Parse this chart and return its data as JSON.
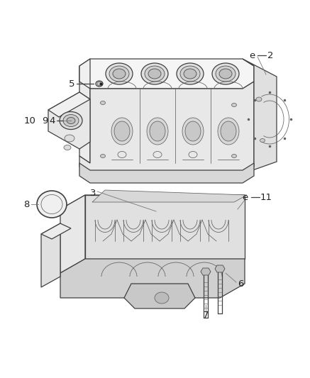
{
  "bg_color": "#ffffff",
  "line_color": "#404040",
  "label_color": "#222222",
  "thin_color": "#606060",
  "lw_main": 0.9,
  "lw_thin": 0.55,
  "lw_label": 0.7,
  "label_fs": 8.5,
  "fig_w": 4.37,
  "fig_h": 5.33,
  "dpi": 100
}
